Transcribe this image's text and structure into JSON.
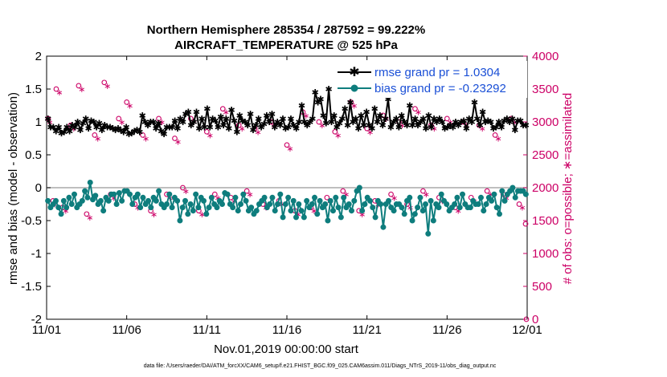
{
  "chart_data": {
    "type": "line",
    "title_line1": "Northern Hemisphere 285354 / 287592 = 99.222%",
    "title_line2": "AIRCRAFT_TEMPERATURE @ 525 hPa",
    "xlabel": "Nov.01,2019 00:00:00 start",
    "ylabel_left": "rmse and bias (model - observation)",
    "ylabel_right": "# of obs: o=possible; ∗=assimilated",
    "footer": "data file: /Users/raeder/DAI/ATM_forcXX/CAM6_setup/f.e21.FHIST_BGC.f09_025.CAM6assim.011/Diags_NTrS_2019-11/obs_diag_output.nc",
    "x_ticks": [
      "11/01",
      "11/06",
      "11/11",
      "11/16",
      "11/21",
      "11/26",
      "12/01"
    ],
    "y_left_ticks": [
      "2",
      "1.5",
      "1",
      "0.5",
      "0",
      "-0.5",
      "-1",
      "-1.5",
      "-2"
    ],
    "y_right_ticks": [
      "4000",
      "3500",
      "3000",
      "2500",
      "2000",
      "1500",
      "1000",
      "500",
      "0"
    ],
    "ylim_left": [
      -2,
      2
    ],
    "ylim_right": [
      0,
      4000
    ],
    "xlim_days": [
      0,
      30
    ],
    "colors": {
      "rmse": "#000000",
      "bias": "#0e7d7d",
      "obs": "#cc0066",
      "legend_text": "#1a4fd6",
      "zero_line": "#aaaaaa"
    },
    "series": [
      {
        "name": "rmse grand pr = 1.0304",
        "legend": "rmse grand pr = 1.0304",
        "values": [
          1.05,
          0.92,
          0.92,
          0.86,
          0.92,
          0.83,
          0.85,
          0.92,
          0.86,
          0.95,
          0.92,
          1.0,
          0.88,
          0.98,
          1.05,
          0.9,
          1.02,
          1.0,
          0.92,
          0.98,
          0.88,
          0.95,
          0.92,
          0.92,
          0.9,
          0.88,
          0.9,
          0.87,
          0.85,
          0.92,
          0.82,
          0.83,
          0.86,
          0.88,
          0.85,
          1.1,
          1.0,
          0.95,
          1.0,
          1.0,
          0.9,
          0.98,
          0.86,
          0.82,
          0.92,
          0.92,
          0.92,
          1.02,
          0.9,
          1.05,
          1.0,
          1.12,
          1.15,
          0.95,
          1.0,
          1.15,
          0.9,
          1.05,
          0.92,
          1.2,
          0.92,
          1.05,
          1.02,
          0.92,
          1.08,
          0.95,
          1.05,
          0.9,
          1.18,
          1.02,
          0.85,
          1.1,
          1.02,
          1.0,
          0.95,
          1.12,
          0.88,
          0.95,
          1.05,
          0.92,
          0.97,
          1.1,
          1.0,
          1.12,
          0.92,
          1.0,
          0.95,
          1.05,
          0.9,
          0.92,
          1.05,
          0.95,
          0.9,
          1.0,
          1.25,
          1.0,
          0.95,
          1.0,
          1.05,
          1.45,
          1.3,
          1.35,
          1.1,
          0.98,
          1.5,
          1.0,
          1.1,
          0.92,
          0.98,
          1.05,
          1.2,
          0.95,
          1.3,
          1.0,
          1.05,
          0.9,
          1.1,
          0.95,
          1.15,
          0.95,
          0.9,
          1.2,
          1.0,
          1.1,
          0.95,
          1.05,
          1.35,
          0.92,
          1.0,
          1.05,
          0.92,
          1.1,
          1.0,
          0.95,
          1.25,
          0.95,
          1.05,
          0.95,
          1.0,
          1.05,
          0.9,
          1.1,
          0.92,
          1.05,
          1.0,
          1.05,
          1.0,
          0.9,
          0.92,
          0.95,
          0.92,
          1.0,
          0.95,
          1.0,
          1.02,
          0.9,
          1.05,
          1.0,
          1.3,
          1.05,
          0.95,
          1.15,
          1.0,
          1.02,
          1.0,
          0.9,
          0.92,
          1.0,
          0.92,
          1.02,
          1.05,
          1.0,
          1.05,
          0.88,
          1.02,
          1.02,
          0.95,
          0.95
        ]
      },
      {
        "name": "bias grand pr = -0.23292",
        "legend": "bias grand pr = -0.23292",
        "values": [
          -0.2,
          -0.3,
          -0.25,
          -0.2,
          -0.3,
          -0.4,
          -0.2,
          -0.3,
          -0.15,
          -0.25,
          -0.1,
          -0.3,
          -0.25,
          -0.2,
          -0.05,
          -0.15,
          0.08,
          -0.18,
          -0.12,
          -0.25,
          -0.2,
          -0.35,
          -0.15,
          -0.2,
          -0.1,
          -0.1,
          -0.25,
          -0.08,
          -0.2,
          -0.05,
          -0.05,
          -0.1,
          -0.25,
          -0.15,
          -0.1,
          -0.3,
          -0.15,
          -0.25,
          -0.2,
          -0.3,
          -0.15,
          -0.2,
          -0.05,
          -0.25,
          -0.3,
          -0.25,
          -0.1,
          -0.3,
          -0.15,
          -0.2,
          -0.5,
          -0.3,
          -0.2,
          -0.4,
          -0.25,
          -0.35,
          -0.1,
          -0.3,
          -0.15,
          -0.2,
          -0.4,
          -0.3,
          -0.15,
          -0.25,
          -0.3,
          -0.2,
          -0.25,
          -0.08,
          -0.1,
          -0.25,
          -0.3,
          -0.15,
          -0.35,
          -0.25,
          -0.1,
          -0.2,
          -0.35,
          -0.3,
          -0.4,
          -0.35,
          -0.25,
          -0.2,
          -0.15,
          -0.3,
          -0.25,
          -0.15,
          -0.35,
          -0.25,
          -0.1,
          -0.45,
          -0.25,
          -0.15,
          -0.35,
          -0.2,
          -0.45,
          -0.25,
          -0.35,
          -0.45,
          -0.2,
          -0.3,
          -0.25,
          -0.15,
          -0.4,
          -0.2,
          -0.3,
          -0.25,
          -0.5,
          -0.2,
          -0.35,
          -0.15,
          -0.3,
          -0.45,
          -0.15,
          -0.3,
          -0.25,
          -0.35,
          -0.2,
          -0.05,
          0.0,
          -0.35,
          -0.25,
          -0.15,
          -0.2,
          -0.3,
          -0.45,
          -0.2,
          -0.25,
          -0.6,
          -0.25,
          -0.2,
          -0.3,
          -0.35,
          -0.25,
          -0.25,
          -0.3,
          -0.4,
          -0.2,
          -0.15,
          -0.5,
          -0.4,
          -0.3,
          -0.15,
          -0.35,
          -0.25,
          -0.7,
          -0.2,
          -0.5,
          -0.25,
          -0.3,
          -0.1,
          -0.2,
          -0.25,
          -0.35,
          -0.3,
          -0.25,
          -0.15,
          -0.3,
          -0.1,
          -0.25,
          -0.3,
          -0.3,
          -0.2,
          -0.25,
          -0.25,
          -0.15,
          -0.35,
          -0.25,
          -0.15,
          -0.2,
          -0.1,
          -0.3,
          -0.4,
          -0.05,
          -0.2,
          -0.1,
          -0.05,
          0.0,
          -0.15,
          -0.05,
          -0.05,
          -0.05,
          -0.1
        ]
      }
    ],
    "obs_possible": [
      [
        0.1,
        3050
      ],
      [
        0.4,
        1800
      ],
      [
        0.6,
        3500
      ],
      [
        1.0,
        1700
      ],
      [
        1.5,
        2950
      ],
      [
        2.0,
        3550
      ],
      [
        2.5,
        1600
      ],
      [
        3.0,
        2800
      ],
      [
        3.6,
        3600
      ],
      [
        4.0,
        1900
      ],
      [
        4.5,
        3050
      ],
      [
        5.0,
        3300
      ],
      [
        5.5,
        1750
      ],
      [
        6.0,
        2800
      ],
      [
        6.5,
        1650
      ],
      [
        7.0,
        3050
      ],
      [
        7.5,
        1900
      ],
      [
        8.0,
        2750
      ],
      [
        8.5,
        2000
      ],
      [
        9.0,
        3050
      ],
      [
        9.5,
        1650
      ],
      [
        10.0,
        2850
      ],
      [
        10.5,
        1900
      ],
      [
        11.0,
        3200
      ],
      [
        11.5,
        1850
      ],
      [
        12.0,
        2950
      ],
      [
        12.5,
        1950
      ],
      [
        13.0,
        2900
      ],
      [
        13.5,
        1750
      ],
      [
        14.0,
        3000
      ],
      [
        14.5,
        1800
      ],
      [
        15.0,
        2650
      ],
      [
        15.5,
        1650
      ],
      [
        16.0,
        3150
      ],
      [
        16.5,
        1700
      ],
      [
        17.0,
        3000
      ],
      [
        17.5,
        1850
      ],
      [
        18.0,
        2850
      ],
      [
        18.5,
        1950
      ],
      [
        19.0,
        3300
      ],
      [
        19.5,
        1650
      ],
      [
        20.0,
        2900
      ],
      [
        20.5,
        1800
      ],
      [
        21.0,
        3100
      ],
      [
        21.5,
        1900
      ],
      [
        22.0,
        3000
      ],
      [
        22.5,
        1750
      ],
      [
        23.0,
        3200
      ],
      [
        23.5,
        1950
      ],
      [
        24.0,
        2950
      ],
      [
        24.5,
        1850
      ],
      [
        25.0,
        3050
      ],
      [
        25.5,
        1700
      ],
      [
        26.0,
        3000
      ],
      [
        26.5,
        1850
      ],
      [
        27.0,
        2950
      ],
      [
        27.5,
        1950
      ],
      [
        28.0,
        2800
      ],
      [
        28.5,
        1900
      ],
      [
        29.0,
        3050
      ],
      [
        29.5,
        1750
      ],
      [
        29.9,
        1450
      ],
      [
        29.95,
        0
      ]
    ],
    "obs_assimilated": [
      [
        0.2,
        3000
      ],
      [
        0.5,
        1750
      ],
      [
        0.8,
        3450
      ],
      [
        1.2,
        1650
      ],
      [
        1.7,
        2900
      ],
      [
        2.2,
        3500
      ],
      [
        2.7,
        1550
      ],
      [
        3.2,
        2750
      ],
      [
        3.8,
        3550
      ],
      [
        4.2,
        1850
      ],
      [
        4.7,
        3000
      ],
      [
        5.2,
        3250
      ],
      [
        5.7,
        1700
      ],
      [
        6.2,
        2750
      ],
      [
        6.7,
        1600
      ],
      [
        7.2,
        3000
      ],
      [
        7.7,
        1850
      ],
      [
        8.2,
        2700
      ],
      [
        8.7,
        1950
      ],
      [
        9.2,
        3000
      ],
      [
        9.7,
        1600
      ],
      [
        10.2,
        2800
      ],
      [
        10.7,
        1850
      ],
      [
        11.2,
        3150
      ],
      [
        11.7,
        1800
      ],
      [
        12.2,
        2900
      ],
      [
        12.7,
        1900
      ],
      [
        13.2,
        2850
      ],
      [
        13.7,
        1700
      ],
      [
        14.2,
        2950
      ],
      [
        14.7,
        1750
      ],
      [
        15.2,
        2600
      ],
      [
        15.7,
        1600
      ],
      [
        16.2,
        3100
      ],
      [
        16.7,
        1650
      ],
      [
        17.2,
        2950
      ],
      [
        17.7,
        1800
      ],
      [
        18.2,
        2800
      ],
      [
        18.7,
        1900
      ],
      [
        19.2,
        3250
      ],
      [
        19.7,
        1600
      ],
      [
        20.2,
        2850
      ],
      [
        20.7,
        1750
      ],
      [
        21.2,
        3050
      ],
      [
        21.7,
        1850
      ],
      [
        22.2,
        2950
      ],
      [
        22.7,
        1700
      ],
      [
        23.2,
        3150
      ],
      [
        23.7,
        1900
      ],
      [
        24.2,
        2900
      ],
      [
        24.7,
        1800
      ],
      [
        25.2,
        3000
      ],
      [
        25.7,
        1650
      ],
      [
        26.2,
        2950
      ],
      [
        26.7,
        1800
      ],
      [
        27.2,
        2900
      ],
      [
        27.7,
        1900
      ],
      [
        28.2,
        2750
      ],
      [
        28.7,
        1850
      ],
      [
        29.2,
        3000
      ],
      [
        29.7,
        1700
      ]
    ]
  }
}
